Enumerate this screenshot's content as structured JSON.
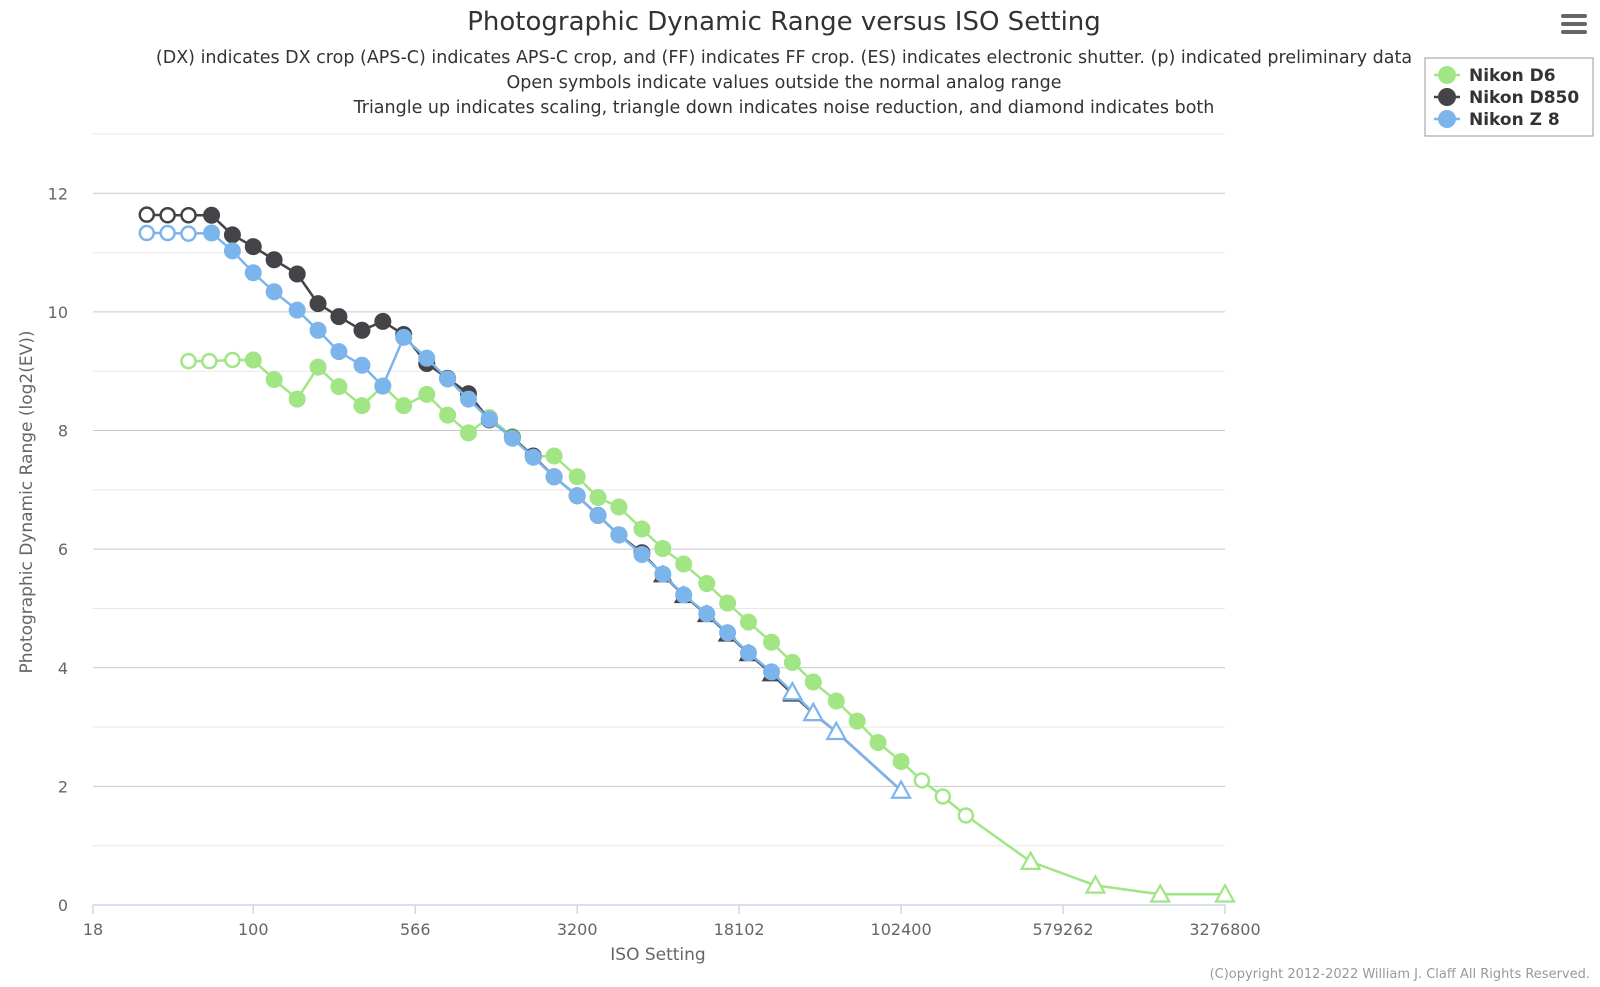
{
  "chart_data": {
    "type": "line",
    "title": "Photographic Dynamic Range versus ISO Setting",
    "subtitle_lines": [
      "(DX) indicates DX crop (APS-C) indicates APS-C crop, and (FF) indicates FF crop. (ES) indicates electronic shutter. (p) indicated preliminary data",
      "Open symbols indicate values outside the normal analog range",
      "Triangle up indicates scaling, triangle down indicates noise reduction, and diamond indicates both"
    ],
    "xlabel": "ISO Setting",
    "ylabel": "Photographic Dynamic Range (log2(EV))",
    "x_scale": "log",
    "xlim": [
      18,
      3276800
    ],
    "ylim": [
      0,
      13
    ],
    "x_ticks": [
      {
        "value": 18,
        "label": "18"
      },
      {
        "value": 100,
        "label": "100"
      },
      {
        "value": 566,
        "label": "566"
      },
      {
        "value": 3200,
        "label": "3200"
      },
      {
        "value": 18102,
        "label": "18102"
      },
      {
        "value": 102400,
        "label": "102400"
      },
      {
        "value": 579262,
        "label": "579262"
      },
      {
        "value": 3276800,
        "label": "3276800"
      }
    ],
    "y_ticks": [
      0,
      2,
      4,
      6,
      8,
      10,
      12
    ],
    "grid": true,
    "legend_position": "top-right",
    "series": [
      {
        "name": "Nikon D6",
        "color": "#a1e585",
        "points": [
          {
            "x": 50,
            "y": 9.17,
            "m": "o"
          },
          {
            "x": 62.5,
            "y": 9.17,
            "m": "o"
          },
          {
            "x": 80,
            "y": 9.19,
            "m": "o"
          },
          {
            "x": 100,
            "y": 9.19,
            "m": "f"
          },
          {
            "x": 125,
            "y": 8.86,
            "m": "f"
          },
          {
            "x": 160,
            "y": 8.53,
            "m": "f"
          },
          {
            "x": 200,
            "y": 9.07,
            "m": "f"
          },
          {
            "x": 250,
            "y": 8.74,
            "m": "f"
          },
          {
            "x": 320,
            "y": 8.42,
            "m": "f"
          },
          {
            "x": 400,
            "y": 8.75,
            "m": "f"
          },
          {
            "x": 500,
            "y": 8.42,
            "m": "f"
          },
          {
            "x": 640,
            "y": 8.61,
            "m": "f"
          },
          {
            "x": 800,
            "y": 8.26,
            "m": "f"
          },
          {
            "x": 1000,
            "y": 7.96,
            "m": "f"
          },
          {
            "x": 1250,
            "y": 8.22,
            "m": "f"
          },
          {
            "x": 1600,
            "y": 7.9,
            "m": "f"
          },
          {
            "x": 2000,
            "y": 7.56,
            "m": "f"
          },
          {
            "x": 2500,
            "y": 7.57,
            "m": "f"
          },
          {
            "x": 3200,
            "y": 7.22,
            "m": "f"
          },
          {
            "x": 4000,
            "y": 6.87,
            "m": "f"
          },
          {
            "x": 5000,
            "y": 6.71,
            "m": "f"
          },
          {
            "x": 6400,
            "y": 6.34,
            "m": "f"
          },
          {
            "x": 8000,
            "y": 6.01,
            "m": "f"
          },
          {
            "x": 10000,
            "y": 5.75,
            "m": "f"
          },
          {
            "x": 12800,
            "y": 5.42,
            "m": "f"
          },
          {
            "x": 16000,
            "y": 5.09,
            "m": "f"
          },
          {
            "x": 20000,
            "y": 4.77,
            "m": "f"
          },
          {
            "x": 25600,
            "y": 4.43,
            "m": "f"
          },
          {
            "x": 32000,
            "y": 4.09,
            "m": "f"
          },
          {
            "x": 40000,
            "y": 3.76,
            "m": "f"
          },
          {
            "x": 51200,
            "y": 3.44,
            "m": "f"
          },
          {
            "x": 64000,
            "y": 3.1,
            "m": "f"
          },
          {
            "x": 80000,
            "y": 2.74,
            "m": "f"
          },
          {
            "x": 102400,
            "y": 2.42,
            "m": "f"
          },
          {
            "x": 128000,
            "y": 2.1,
            "m": "o"
          },
          {
            "x": 160000,
            "y": 1.83,
            "m": "o"
          },
          {
            "x": 204800,
            "y": 1.51,
            "m": "o"
          },
          {
            "x": 409600,
            "y": 0.73,
            "m": "t"
          },
          {
            "x": 819200,
            "y": 0.33,
            "m": "t"
          },
          {
            "x": 1638400,
            "y": 0.18,
            "m": "t"
          },
          {
            "x": 3276800,
            "y": 0.18,
            "m": "t"
          }
        ]
      },
      {
        "name": "Nikon D850",
        "color": "#434348",
        "points": [
          {
            "x": 32,
            "y": 11.64,
            "m": "o"
          },
          {
            "x": 40,
            "y": 11.63,
            "m": "o"
          },
          {
            "x": 50,
            "y": 11.63,
            "m": "o"
          },
          {
            "x": 64,
            "y": 11.63,
            "m": "f"
          },
          {
            "x": 80,
            "y": 11.3,
            "m": "f"
          },
          {
            "x": 100,
            "y": 11.1,
            "m": "f"
          },
          {
            "x": 125,
            "y": 10.88,
            "m": "f"
          },
          {
            "x": 160,
            "y": 10.64,
            "m": "f"
          },
          {
            "x": 200,
            "y": 10.14,
            "m": "f"
          },
          {
            "x": 250,
            "y": 9.92,
            "m": "f"
          },
          {
            "x": 320,
            "y": 9.69,
            "m": "f"
          },
          {
            "x": 400,
            "y": 9.84,
            "m": "f"
          },
          {
            "x": 500,
            "y": 9.62,
            "m": "f"
          },
          {
            "x": 640,
            "y": 9.13,
            "m": "f"
          },
          {
            "x": 800,
            "y": 8.88,
            "m": "f"
          },
          {
            "x": 1000,
            "y": 8.62,
            "m": "f"
          },
          {
            "x": 1250,
            "y": 8.18,
            "m": "f"
          },
          {
            "x": 1600,
            "y": 7.88,
            "m": "f"
          },
          {
            "x": 2000,
            "y": 7.57,
            "m": "f"
          },
          {
            "x": 2500,
            "y": 7.22,
            "m": "f"
          },
          {
            "x": 3200,
            "y": 6.9,
            "m": "f"
          },
          {
            "x": 4000,
            "y": 6.57,
            "m": "f"
          },
          {
            "x": 5000,
            "y": 6.24,
            "m": "f"
          },
          {
            "x": 6400,
            "y": 5.94,
            "m": "f"
          },
          {
            "x": 8000,
            "y": 5.57,
            "m": "t"
          },
          {
            "x": 10000,
            "y": 5.22,
            "m": "t"
          },
          {
            "x": 12800,
            "y": 4.9,
            "m": "t"
          },
          {
            "x": 16000,
            "y": 4.57,
            "m": "t"
          },
          {
            "x": 20000,
            "y": 4.24,
            "m": "t"
          },
          {
            "x": 25600,
            "y": 3.9,
            "m": "t"
          },
          {
            "x": 32000,
            "y": 3.56,
            "m": "t"
          },
          {
            "x": 40000,
            "y": 3.23,
            "m": "t"
          },
          {
            "x": 51200,
            "y": 2.92,
            "m": "t"
          },
          {
            "x": 102400,
            "y": 1.93,
            "m": "t"
          }
        ]
      },
      {
        "name": "Nikon Z 8",
        "color": "#7cb5ec",
        "points": [
          {
            "x": 32,
            "y": 11.33,
            "m": "o"
          },
          {
            "x": 40,
            "y": 11.33,
            "m": "o"
          },
          {
            "x": 50,
            "y": 11.32,
            "m": "o"
          },
          {
            "x": 64,
            "y": 11.33,
            "m": "f"
          },
          {
            "x": 80,
            "y": 11.03,
            "m": "f"
          },
          {
            "x": 100,
            "y": 10.66,
            "m": "f"
          },
          {
            "x": 125,
            "y": 10.34,
            "m": "f"
          },
          {
            "x": 160,
            "y": 10.03,
            "m": "f"
          },
          {
            "x": 200,
            "y": 9.69,
            "m": "f"
          },
          {
            "x": 250,
            "y": 9.33,
            "m": "f"
          },
          {
            "x": 320,
            "y": 9.1,
            "m": "f"
          },
          {
            "x": 400,
            "y": 8.75,
            "m": "f"
          },
          {
            "x": 500,
            "y": 9.57,
            "m": "f"
          },
          {
            "x": 640,
            "y": 9.22,
            "m": "f"
          },
          {
            "x": 800,
            "y": 8.87,
            "m": "f"
          },
          {
            "x": 1000,
            "y": 8.53,
            "m": "f"
          },
          {
            "x": 1250,
            "y": 8.19,
            "m": "f"
          },
          {
            "x": 1600,
            "y": 7.87,
            "m": "f"
          },
          {
            "x": 2000,
            "y": 7.55,
            "m": "f"
          },
          {
            "x": 2500,
            "y": 7.22,
            "m": "f"
          },
          {
            "x": 3200,
            "y": 6.9,
            "m": "f"
          },
          {
            "x": 4000,
            "y": 6.57,
            "m": "f"
          },
          {
            "x": 5000,
            "y": 6.24,
            "m": "f"
          },
          {
            "x": 6400,
            "y": 5.91,
            "m": "f"
          },
          {
            "x": 8000,
            "y": 5.58,
            "m": "f"
          },
          {
            "x": 10000,
            "y": 5.23,
            "m": "f"
          },
          {
            "x": 12800,
            "y": 4.91,
            "m": "f"
          },
          {
            "x": 16000,
            "y": 4.59,
            "m": "f"
          },
          {
            "x": 20000,
            "y": 4.25,
            "m": "f"
          },
          {
            "x": 25600,
            "y": 3.93,
            "m": "f"
          },
          {
            "x": 32000,
            "y": 3.59,
            "m": "to"
          },
          {
            "x": 40000,
            "y": 3.24,
            "m": "to"
          },
          {
            "x": 51200,
            "y": 2.92,
            "m": "to"
          },
          {
            "x": 102400,
            "y": 1.93,
            "m": "to"
          }
        ]
      }
    ]
  },
  "credits": "(C)opyright 2012-2022 William J. Claff All Rights Reserved.",
  "menu_icon": "hamburger-menu-icon",
  "colors": {
    "grid": "#d9d9d9",
    "axis": "#ccd6eb",
    "text": "#333333",
    "label": "#666666"
  }
}
